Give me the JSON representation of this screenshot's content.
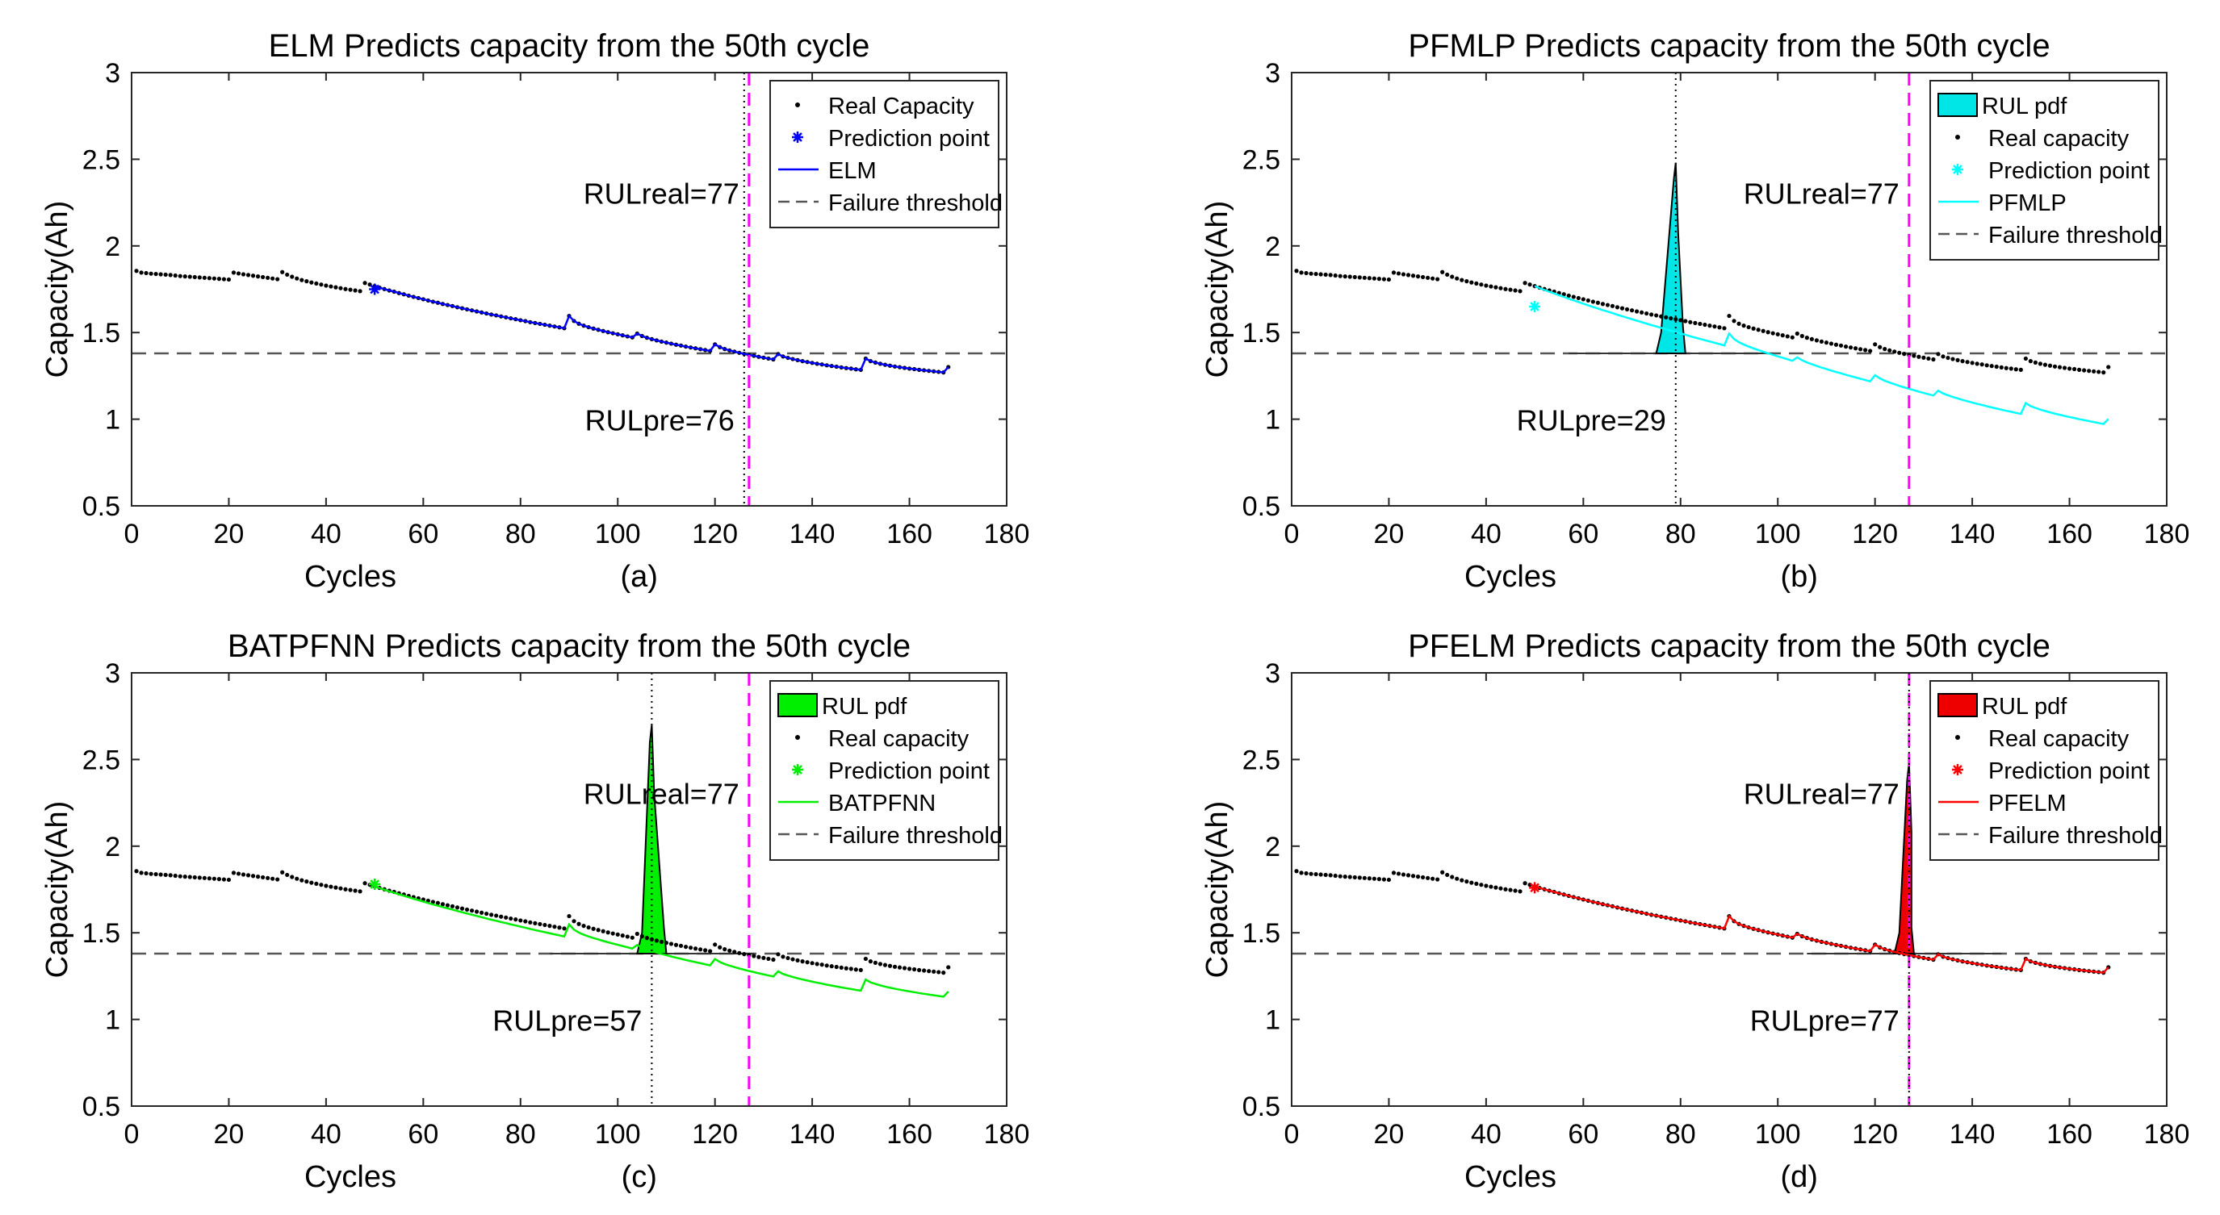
{
  "chart_data": [
    {
      "type": "line",
      "panel": "(a)",
      "title": "ELM Predicts capacity from the 50th cycle",
      "xlabel": "Cycles",
      "ylabel": "Capacity(Ah)",
      "xlim": [
        0,
        180
      ],
      "ylim": [
        0.5,
        3
      ],
      "xticks": [
        0,
        20,
        40,
        60,
        80,
        100,
        120,
        140,
        160,
        180
      ],
      "yticks": [
        0.5,
        1,
        1.5,
        2,
        2.5,
        3
      ],
      "grid": false,
      "legend_position": "top-right",
      "method": "ELM",
      "pred_color": "#0000ff",
      "prediction_start": 50,
      "prediction_value": 1.75,
      "prediction_offset": 0,
      "failure_threshold": 1.38,
      "rul_real_cycle": 127,
      "rul_pre_cycle": 126,
      "rul_real_label": "RULreal=77",
      "rul_pre_label": "RULpre=76",
      "pdf": null,
      "legend": [
        {
          "marker": "dot",
          "label": "Real Capacity"
        },
        {
          "marker": "star",
          "label": "Prediction point"
        },
        {
          "marker": "line",
          "label": "ELM"
        },
        {
          "marker": "dash",
          "label": "Failure threshold"
        }
      ]
    },
    {
      "type": "line",
      "panel": "(b)",
      "title": "PFMLP Predicts capacity from the 50th cycle",
      "xlabel": "Cycles",
      "ylabel": "Capacity(Ah)",
      "xlim": [
        0,
        180
      ],
      "ylim": [
        0.5,
        3
      ],
      "xticks": [
        0,
        20,
        40,
        60,
        80,
        100,
        120,
        140,
        160,
        180
      ],
      "yticks": [
        0.5,
        1,
        1.5,
        2,
        2.5,
        3
      ],
      "grid": false,
      "legend_position": "top-right",
      "method": "PFMLP",
      "pred_color": "#00ffff",
      "prediction_start": 50,
      "prediction_value": 1.65,
      "prediction_offset": -0.3,
      "failure_threshold": 1.38,
      "rul_real_cycle": 127,
      "rul_pre_cycle": 79,
      "rul_real_label": "RULreal=77",
      "rul_pre_label": "RULpre=29",
      "pdf": {
        "color": "#00e5e5",
        "peak_cycle": 79,
        "peak": 2.48,
        "left": 75,
        "right": 81
      },
      "legend": [
        {
          "marker": "patch",
          "label": "RUL pdf"
        },
        {
          "marker": "dot",
          "label": "Real capacity"
        },
        {
          "marker": "star",
          "label": "Prediction point"
        },
        {
          "marker": "line",
          "label": "PFMLP"
        },
        {
          "marker": "dash",
          "label": "Failure threshold"
        }
      ]
    },
    {
      "type": "line",
      "panel": "(c)",
      "title": "BATPFNN Predicts capacity from the 50th cycle",
      "xlabel": "Cycles",
      "ylabel": "Capacity(Ah)",
      "xlim": [
        0,
        180
      ],
      "ylim": [
        0.5,
        3
      ],
      "xticks": [
        0,
        20,
        40,
        60,
        80,
        100,
        120,
        140,
        160,
        180
      ],
      "yticks": [
        0.5,
        1,
        1.5,
        2,
        2.5,
        3
      ],
      "grid": false,
      "legend_position": "top-right",
      "method": "BATPFNN",
      "pred_color": "#00ee00",
      "prediction_start": 50,
      "prediction_value": 1.78,
      "prediction_offset": -0.14,
      "failure_threshold": 1.38,
      "rul_real_cycle": 127,
      "rul_pre_cycle": 107,
      "rul_real_label": "RULreal=77",
      "rul_pre_label": "RULpre=57",
      "pdf": {
        "color": "#00ee00",
        "peak_cycle": 107,
        "peak": 2.7,
        "left": 104,
        "right": 110
      },
      "legend": [
        {
          "marker": "patch",
          "label": "RUL pdf"
        },
        {
          "marker": "dot",
          "label": "Real capacity"
        },
        {
          "marker": "star",
          "label": "Prediction point"
        },
        {
          "marker": "line",
          "label": "BATPFNN"
        },
        {
          "marker": "dash",
          "label": "Failure threshold"
        }
      ]
    },
    {
      "type": "line",
      "panel": "(d)",
      "title": "PFELM Predicts capacity from the 50th cycle",
      "xlabel": "Cycles",
      "ylabel": "Capacity(Ah)",
      "xlim": [
        0,
        180
      ],
      "ylim": [
        0.5,
        3
      ],
      "xticks": [
        0,
        20,
        40,
        60,
        80,
        100,
        120,
        140,
        160,
        180
      ],
      "yticks": [
        0.5,
        1,
        1.5,
        2,
        2.5,
        3
      ],
      "grid": false,
      "legend_position": "top-right",
      "method": "PFELM",
      "pred_color": "#ff0000",
      "prediction_start": 50,
      "prediction_value": 1.76,
      "prediction_offset": 0,
      "failure_threshold": 1.38,
      "rul_real_cycle": 127,
      "rul_pre_cycle": 127,
      "rul_real_label": "RULreal=77",
      "rul_pre_label": "RULpre=77",
      "pdf": {
        "color": "#ee0000",
        "peak_cycle": 127,
        "peak": 2.48,
        "left": 124,
        "right": 128
      },
      "legend": [
        {
          "marker": "patch",
          "label": "RUL pdf"
        },
        {
          "marker": "dot",
          "label": "Real capacity"
        },
        {
          "marker": "star",
          "label": "Prediction point"
        },
        {
          "marker": "line",
          "label": "PFELM"
        },
        {
          "marker": "dash",
          "label": "Failure threshold"
        }
      ]
    }
  ],
  "real_capacity": {
    "cycles": [
      1,
      2,
      3,
      4,
      5,
      6,
      7,
      8,
      9,
      10,
      11,
      12,
      13,
      14,
      15,
      16,
      17,
      18,
      19,
      20,
      21,
      22,
      23,
      24,
      25,
      26,
      27,
      28,
      29,
      30,
      31,
      32,
      33,
      34,
      35,
      36,
      37,
      38,
      39,
      40,
      41,
      42,
      43,
      44,
      45,
      46,
      47,
      48,
      49,
      50,
      51,
      52,
      53,
      54,
      55,
      56,
      57,
      58,
      59,
      60,
      61,
      62,
      63,
      64,
      65,
      66,
      67,
      68,
      69,
      70,
      71,
      72,
      73,
      74,
      75,
      76,
      77,
      78,
      79,
      80,
      81,
      82,
      83,
      84,
      85,
      86,
      87,
      88,
      89,
      90,
      91,
      92,
      93,
      94,
      95,
      96,
      97,
      98,
      99,
      100,
      101,
      102,
      103,
      104,
      105,
      106,
      107,
      108,
      109,
      110,
      111,
      112,
      113,
      114,
      115,
      116,
      117,
      118,
      119,
      120,
      121,
      122,
      123,
      124,
      125,
      126,
      127,
      128,
      129,
      130,
      131,
      132,
      133,
      134,
      135,
      136,
      137,
      138,
      139,
      140,
      141,
      142,
      143,
      144,
      145,
      146,
      147,
      148,
      149,
      150,
      151,
      152,
      153,
      154,
      155,
      156,
      157,
      158,
      159,
      160,
      161,
      162,
      163,
      164,
      165,
      166,
      167,
      168
    ],
    "capacity": [
      1.856,
      1.846,
      1.843,
      1.84,
      1.838,
      1.836,
      1.834,
      1.832,
      1.829,
      1.826,
      1.824,
      1.822,
      1.82,
      1.818,
      1.816,
      1.814,
      1.812,
      1.81,
      1.808,
      1.806,
      1.846,
      1.841,
      1.836,
      1.832,
      1.828,
      1.824,
      1.82,
      1.816,
      1.812,
      1.808,
      1.849,
      1.834,
      1.822,
      1.812,
      1.803,
      1.796,
      1.789,
      1.783,
      1.777,
      1.771,
      1.766,
      1.761,
      1.756,
      1.751,
      1.747,
      1.743,
      1.739,
      1.786,
      1.777,
      1.768,
      1.759,
      1.751,
      1.743,
      1.736,
      1.728,
      1.721,
      1.713,
      1.706,
      1.699,
      1.692,
      1.685,
      1.678,
      1.672,
      1.665,
      1.659,
      1.653,
      1.646,
      1.64,
      1.634,
      1.628,
      1.622,
      1.616,
      1.61,
      1.604,
      1.599,
      1.593,
      1.588,
      1.582,
      1.577,
      1.571,
      1.566,
      1.56,
      1.555,
      1.55,
      1.545,
      1.54,
      1.535,
      1.53,
      1.525,
      1.596,
      1.567,
      1.551,
      1.54,
      1.531,
      1.523,
      1.516,
      1.509,
      1.502,
      1.496,
      1.49,
      1.484,
      1.478,
      1.472,
      1.494,
      1.48,
      1.47,
      1.462,
      1.455,
      1.448,
      1.442,
      1.436,
      1.43,
      1.425,
      1.419,
      1.414,
      1.409,
      1.404,
      1.399,
      1.394,
      1.432,
      1.416,
      1.405,
      1.397,
      1.39,
      1.383,
      1.377,
      1.371,
      1.366,
      1.36,
      1.355,
      1.35,
      1.345,
      1.376,
      1.362,
      1.354,
      1.347,
      1.341,
      1.335,
      1.33,
      1.325,
      1.32,
      1.316,
      1.311,
      1.307,
      1.303,
      1.299,
      1.295,
      1.292,
      1.288,
      1.285,
      1.35,
      1.335,
      1.327,
      1.32,
      1.314,
      1.309,
      1.304,
      1.3,
      1.296,
      1.292,
      1.289,
      1.285,
      1.282,
      1.279,
      1.276,
      1.273,
      1.27,
      1.301,
      1.31,
      1.32
    ]
  }
}
